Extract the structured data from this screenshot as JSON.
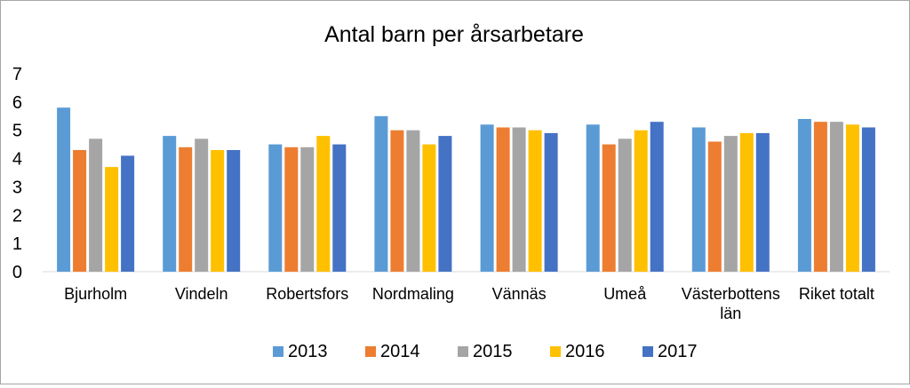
{
  "chart_data": {
    "type": "bar",
    "title": "Antal barn per årsarbetare",
    "xlabel": "",
    "ylabel": "",
    "ylim": [
      0,
      7
    ],
    "yticks": [
      "0",
      "1",
      "2",
      "3",
      "4",
      "5",
      "6",
      "7"
    ],
    "grid": false,
    "legend_position": "bottom",
    "categories": [
      [
        "Bjurholm"
      ],
      [
        "Vindeln"
      ],
      [
        "Robertsfors"
      ],
      [
        "Nordmaling"
      ],
      [
        "Vännäs"
      ],
      [
        "Umeå"
      ],
      [
        "Västerbottens",
        "län"
      ],
      [
        "Riket totalt"
      ]
    ],
    "series": [
      {
        "name": "2013",
        "color": "#5b9bd5",
        "values": [
          5.8,
          4.8,
          4.5,
          5.5,
          5.2,
          5.2,
          5.1,
          5.4
        ]
      },
      {
        "name": "2014",
        "color": "#ed7d31",
        "values": [
          4.3,
          4.4,
          4.4,
          5.0,
          5.1,
          4.5,
          4.6,
          5.3
        ]
      },
      {
        "name": "2015",
        "color": "#a5a5a5",
        "values": [
          4.7,
          4.7,
          4.4,
          5.0,
          5.1,
          4.7,
          4.8,
          5.3
        ]
      },
      {
        "name": "2016",
        "color": "#ffc000",
        "values": [
          3.7,
          4.3,
          4.8,
          4.5,
          5.0,
          5.0,
          4.9,
          5.2
        ]
      },
      {
        "name": "2017",
        "color": "#4472c4",
        "values": [
          4.1,
          4.3,
          4.5,
          4.8,
          4.9,
          5.3,
          4.9,
          5.1
        ]
      }
    ]
  }
}
